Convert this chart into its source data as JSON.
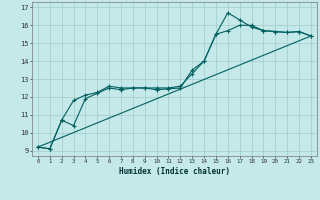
{
  "title": "",
  "xlabel": "Humidex (Indice chaleur)",
  "bg_color": "#c5e8e8",
  "line_color": "#006060",
  "grid_color": "#a0cccc",
  "xlim": [
    -0.5,
    23.5
  ],
  "ylim": [
    8.7,
    17.3
  ],
  "xtick_vals": [
    0,
    1,
    2,
    3,
    4,
    5,
    6,
    7,
    8,
    9,
    10,
    11,
    12,
    13,
    14,
    15,
    16,
    17,
    18,
    19,
    20,
    21,
    22,
    23
  ],
  "ytick_vals": [
    9,
    10,
    11,
    12,
    13,
    14,
    15,
    16,
    17
  ],
  "line1_x": [
    0,
    1,
    2,
    3,
    4,
    5,
    6,
    7,
    8,
    9,
    10,
    11,
    12,
    13,
    14,
    15,
    16,
    17,
    18,
    19,
    20,
    21,
    22,
    23
  ],
  "line1_y": [
    9.2,
    9.1,
    10.7,
    10.4,
    11.9,
    12.2,
    12.5,
    12.4,
    12.5,
    12.5,
    12.4,
    12.45,
    12.5,
    13.5,
    14.0,
    15.5,
    16.7,
    16.3,
    15.9,
    15.7,
    15.65,
    15.6,
    15.65,
    15.4
  ],
  "line2_x": [
    0,
    1,
    2,
    3,
    4,
    5,
    6,
    7,
    8,
    9,
    10,
    11,
    12,
    13,
    14,
    15,
    16,
    17,
    18,
    19,
    20,
    21,
    22,
    23
  ],
  "line2_y": [
    9.2,
    9.1,
    10.7,
    11.8,
    12.1,
    12.25,
    12.6,
    12.5,
    12.5,
    12.5,
    12.5,
    12.5,
    12.6,
    13.3,
    14.0,
    15.5,
    15.7,
    16.0,
    16.0,
    15.7,
    15.65,
    15.6,
    15.65,
    15.4
  ],
  "line3_x": [
    0,
    23
  ],
  "line3_y": [
    9.2,
    15.4
  ],
  "marker_size": 3,
  "line_width": 0.8
}
